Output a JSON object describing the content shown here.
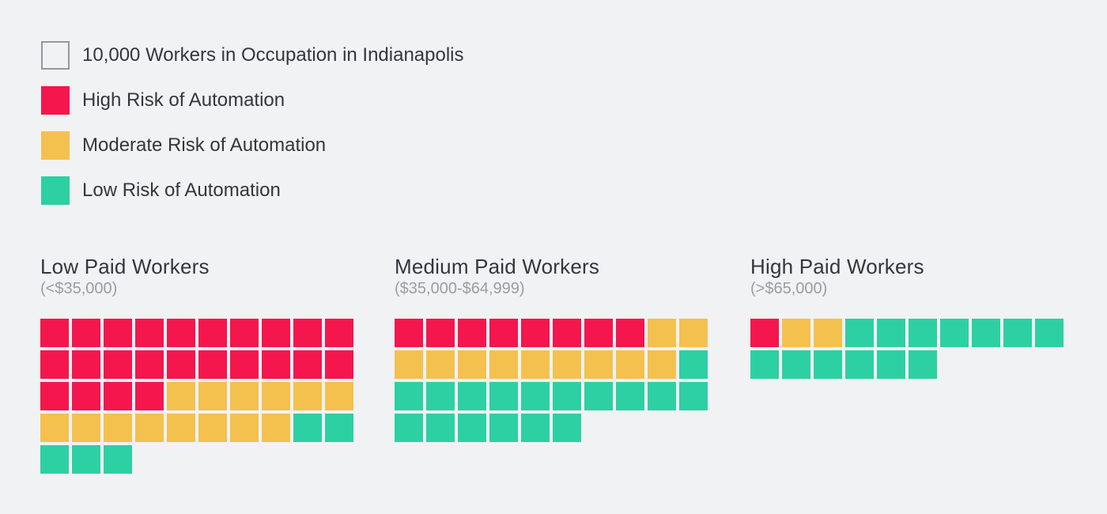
{
  "colors": {
    "background": "#F0F2F4",
    "high": "#F4164D",
    "moderate": "#F4C14E",
    "low": "#2CD0A3",
    "unit_border": "#96989B",
    "title_text": "#33373C",
    "subtitle_text": "#9A9DA1",
    "grid_gap": "#FFFFFF"
  },
  "legend": {
    "items": [
      {
        "swatch": "unit",
        "label": "10,000 Workers in Occupation in Indianapolis"
      },
      {
        "swatch": "high",
        "label": "High Risk of Automation"
      },
      {
        "swatch": "moderate",
        "label": "Moderate Risk of Automation"
      },
      {
        "swatch": "low",
        "label": "Low Risk of Automation"
      }
    ]
  },
  "chart_data": {
    "type": "waffle",
    "unit_label": "10,000 Workers in Occupation in Indianapolis",
    "unit_value": 10000,
    "columns_per_row": 10,
    "fill_order": [
      "high",
      "moderate",
      "low"
    ],
    "series_names": {
      "high": "High Risk of Automation",
      "moderate": "Moderate Risk of Automation",
      "low": "Low Risk of Automation"
    },
    "groups": [
      {
        "title": "Low Paid Workers",
        "subtitle": "(<$35,000)",
        "counts": {
          "high": 24,
          "moderate": 14,
          "low": 5
        },
        "total_squares": 43
      },
      {
        "title": "Medium Paid Workers",
        "subtitle": "($35,000-$64,999)",
        "counts": {
          "high": 8,
          "moderate": 11,
          "low": 17
        },
        "total_squares": 36
      },
      {
        "title": "High Paid Workers",
        "subtitle": "(>$65,000)",
        "counts": {
          "high": 1,
          "moderate": 2,
          "low": 13
        },
        "total_squares": 16
      }
    ]
  }
}
